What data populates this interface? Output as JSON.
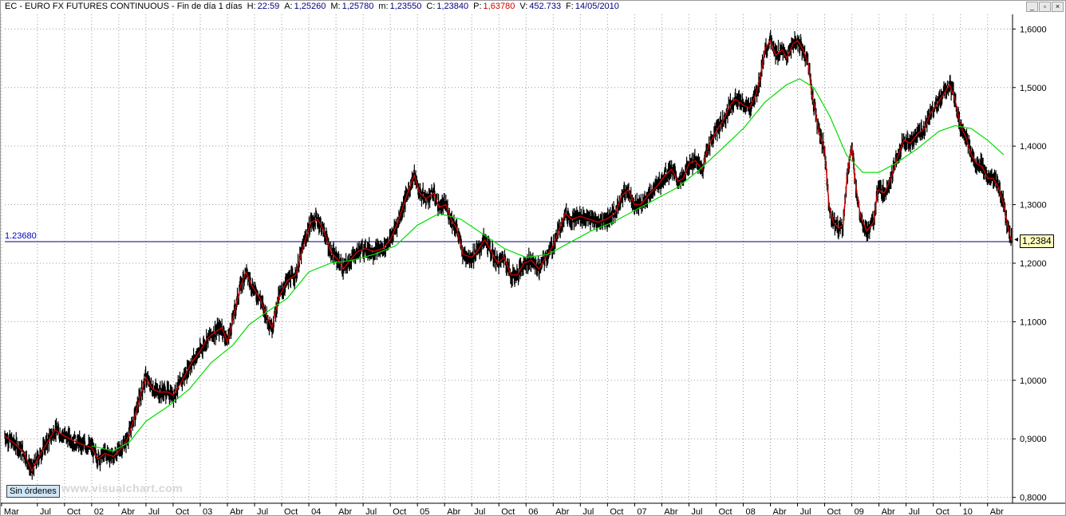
{
  "header": {
    "title": "EC - EURO FX FUTURES CONTINUOUS - Fin de día 1 días",
    "stats": [
      {
        "label": "H:",
        "value": "22:59",
        "color": "#000080"
      },
      {
        "label": "A:",
        "value": "1,25260",
        "color": "#000080"
      },
      {
        "label": "M:",
        "value": "1,25780",
        "color": "#000080"
      },
      {
        "label": "m:",
        "value": "1,23550",
        "color": "#000080"
      },
      {
        "label": "C:",
        "value": "1,23840",
        "color": "#000080"
      },
      {
        "label": "P:",
        "value": "1,63780",
        "color": "#d00000"
      },
      {
        "label": "V:",
        "value": "452.733",
        "color": "#000080"
      },
      {
        "label": "F:",
        "value": "14/05/2010",
        "color": "#000080"
      }
    ]
  },
  "window_controls": {
    "minimize": "_",
    "restore": "▫",
    "close": "×"
  },
  "footer": {
    "orders_button": "Sin órdenes",
    "watermark": "www.visualchart.com"
  },
  "overlay": {
    "hline_label": "1.23680",
    "hline_value": 1.2368,
    "last_price_label": "1,2384",
    "last_price_value": 1.2384
  },
  "colors": {
    "price": "#000000",
    "short_ma": "#cc0000",
    "long_ma": "#00dd00",
    "hline": "#000080",
    "grid": "#9a9a9a"
  },
  "chart_data": {
    "type": "line",
    "title": "EC - EURO FX FUTURES CONTINUOUS",
    "ylim": [
      0.79,
      1.625
    ],
    "xlim": [
      2001.2,
      2010.48
    ],
    "grid": true,
    "y_ticks": [
      {
        "value": 0.8,
        "label": "0,8000"
      },
      {
        "value": 0.9,
        "label": "0,9000"
      },
      {
        "value": 1.0,
        "label": "1,0000"
      },
      {
        "value": 1.1,
        "label": "1,1000"
      },
      {
        "value": 1.2,
        "label": "1,2000"
      },
      {
        "value": 1.3,
        "label": "1,3000"
      },
      {
        "value": 1.4,
        "label": "1,4000"
      },
      {
        "value": 1.5,
        "label": "1,5000"
      },
      {
        "value": 1.6,
        "label": "1,6000"
      }
    ],
    "x_ticks": [
      {
        "x": 2001.17,
        "label": "Mar"
      },
      {
        "x": 2001.5,
        "label": "Jul"
      },
      {
        "x": 2001.75,
        "label": "Oct"
      },
      {
        "x": 2002.0,
        "label": "02"
      },
      {
        "x": 2002.25,
        "label": "Abr"
      },
      {
        "x": 2002.5,
        "label": "Jul"
      },
      {
        "x": 2002.75,
        "label": "Oct"
      },
      {
        "x": 2003.0,
        "label": "03"
      },
      {
        "x": 2003.25,
        "label": "Abr"
      },
      {
        "x": 2003.5,
        "label": "Jul"
      },
      {
        "x": 2003.75,
        "label": "Oct"
      },
      {
        "x": 2004.0,
        "label": "04"
      },
      {
        "x": 2004.25,
        "label": "Abr"
      },
      {
        "x": 2004.5,
        "label": "Jul"
      },
      {
        "x": 2004.75,
        "label": "Oct"
      },
      {
        "x": 2005.0,
        "label": "05"
      },
      {
        "x": 2005.25,
        "label": "Abr"
      },
      {
        "x": 2005.5,
        "label": "Jul"
      },
      {
        "x": 2005.75,
        "label": "Oct"
      },
      {
        "x": 2006.0,
        "label": "06"
      },
      {
        "x": 2006.25,
        "label": "Abr"
      },
      {
        "x": 2006.5,
        "label": "Jul"
      },
      {
        "x": 2006.75,
        "label": "Oct"
      },
      {
        "x": 2007.0,
        "label": "07"
      },
      {
        "x": 2007.25,
        "label": "Abr"
      },
      {
        "x": 2007.5,
        "label": "Jul"
      },
      {
        "x": 2007.75,
        "label": "Oct"
      },
      {
        "x": 2008.0,
        "label": "08"
      },
      {
        "x": 2008.25,
        "label": "Abr"
      },
      {
        "x": 2008.5,
        "label": "Jul"
      },
      {
        "x": 2008.75,
        "label": "Oct"
      },
      {
        "x": 2009.0,
        "label": "09"
      },
      {
        "x": 2009.25,
        "label": "Abr"
      },
      {
        "x": 2009.5,
        "label": "Jul"
      },
      {
        "x": 2009.75,
        "label": "Oct"
      },
      {
        "x": 2010.0,
        "label": "10"
      },
      {
        "x": 2010.25,
        "label": "Abr"
      }
    ],
    "series": [
      {
        "key": "price",
        "points": [
          [
            2001.2,
            0.905
          ],
          [
            2001.3,
            0.89
          ],
          [
            2001.38,
            0.875
          ],
          [
            2001.45,
            0.845
          ],
          [
            2001.5,
            0.865
          ],
          [
            2001.58,
            0.89
          ],
          [
            2001.66,
            0.915
          ],
          [
            2001.75,
            0.905
          ],
          [
            2001.85,
            0.895
          ],
          [
            2001.92,
            0.89
          ],
          [
            2002.0,
            0.885
          ],
          [
            2002.06,
            0.865
          ],
          [
            2002.12,
            0.875
          ],
          [
            2002.2,
            0.87
          ],
          [
            2002.28,
            0.885
          ],
          [
            2002.33,
            0.9
          ],
          [
            2002.4,
            0.94
          ],
          [
            2002.45,
            0.975
          ],
          [
            2002.5,
            1.005
          ],
          [
            2002.56,
            0.985
          ],
          [
            2002.62,
            0.98
          ],
          [
            2002.7,
            0.98
          ],
          [
            2002.75,
            0.975
          ],
          [
            2002.82,
            0.995
          ],
          [
            2002.92,
            1.03
          ],
          [
            2003.0,
            1.05
          ],
          [
            2003.06,
            1.07
          ],
          [
            2003.12,
            1.08
          ],
          [
            2003.2,
            1.09
          ],
          [
            2003.25,
            1.065
          ],
          [
            2003.32,
            1.12
          ],
          [
            2003.37,
            1.16
          ],
          [
            2003.42,
            1.185
          ],
          [
            2003.48,
            1.16
          ],
          [
            2003.55,
            1.14
          ],
          [
            2003.6,
            1.115
          ],
          [
            2003.66,
            1.09
          ],
          [
            2003.72,
            1.14
          ],
          [
            2003.8,
            1.17
          ],
          [
            2003.88,
            1.18
          ],
          [
            2003.95,
            1.23
          ],
          [
            2004.02,
            1.27
          ],
          [
            2004.08,
            1.275
          ],
          [
            2004.14,
            1.255
          ],
          [
            2004.2,
            1.22
          ],
          [
            2004.27,
            1.205
          ],
          [
            2004.32,
            1.19
          ],
          [
            2004.38,
            1.205
          ],
          [
            2004.45,
            1.22
          ],
          [
            2004.52,
            1.225
          ],
          [
            2004.6,
            1.22
          ],
          [
            2004.68,
            1.225
          ],
          [
            2004.75,
            1.24
          ],
          [
            2004.82,
            1.27
          ],
          [
            2004.9,
            1.315
          ],
          [
            2004.97,
            1.35
          ],
          [
            2005.02,
            1.32
          ],
          [
            2005.08,
            1.31
          ],
          [
            2005.15,
            1.32
          ],
          [
            2005.2,
            1.295
          ],
          [
            2005.26,
            1.3
          ],
          [
            2005.31,
            1.275
          ],
          [
            2005.36,
            1.26
          ],
          [
            2005.42,
            1.215
          ],
          [
            2005.5,
            1.21
          ],
          [
            2005.55,
            1.22
          ],
          [
            2005.62,
            1.24
          ],
          [
            2005.68,
            1.22
          ],
          [
            2005.74,
            1.2
          ],
          [
            2005.8,
            1.21
          ],
          [
            2005.86,
            1.18
          ],
          [
            2005.92,
            1.18
          ],
          [
            2005.98,
            1.2
          ],
          [
            2006.05,
            1.205
          ],
          [
            2006.12,
            1.19
          ],
          [
            2006.18,
            1.21
          ],
          [
            2006.25,
            1.23
          ],
          [
            2006.31,
            1.26
          ],
          [
            2006.36,
            1.285
          ],
          [
            2006.42,
            1.275
          ],
          [
            2006.5,
            1.28
          ],
          [
            2006.58,
            1.275
          ],
          [
            2006.66,
            1.27
          ],
          [
            2006.74,
            1.275
          ],
          [
            2006.82,
            1.285
          ],
          [
            2006.88,
            1.315
          ],
          [
            2006.94,
            1.325
          ],
          [
            2007.0,
            1.3
          ],
          [
            2007.06,
            1.3
          ],
          [
            2007.12,
            1.315
          ],
          [
            2007.2,
            1.33
          ],
          [
            2007.28,
            1.35
          ],
          [
            2007.34,
            1.36
          ],
          [
            2007.4,
            1.34
          ],
          [
            2007.45,
            1.345
          ],
          [
            2007.5,
            1.37
          ],
          [
            2007.56,
            1.375
          ],
          [
            2007.62,
            1.36
          ],
          [
            2007.68,
            1.4
          ],
          [
            2007.75,
            1.425
          ],
          [
            2007.82,
            1.445
          ],
          [
            2007.88,
            1.47
          ],
          [
            2007.93,
            1.48
          ],
          [
            2008.0,
            1.47
          ],
          [
            2008.06,
            1.465
          ],
          [
            2008.12,
            1.49
          ],
          [
            2008.16,
            1.52
          ],
          [
            2008.2,
            1.565
          ],
          [
            2008.25,
            1.58
          ],
          [
            2008.3,
            1.555
          ],
          [
            2008.36,
            1.565
          ],
          [
            2008.4,
            1.55
          ],
          [
            2008.46,
            1.575
          ],
          [
            2008.5,
            1.58
          ],
          [
            2008.55,
            1.565
          ],
          [
            2008.6,
            1.54
          ],
          [
            2008.63,
            1.49
          ],
          [
            2008.66,
            1.465
          ],
          [
            2008.7,
            1.42
          ],
          [
            2008.75,
            1.395
          ],
          [
            2008.79,
            1.3
          ],
          [
            2008.83,
            1.27
          ],
          [
            2008.88,
            1.26
          ],
          [
            2008.92,
            1.265
          ],
          [
            2008.96,
            1.355
          ],
          [
            2009.0,
            1.4
          ],
          [
            2009.03,
            1.34
          ],
          [
            2009.08,
            1.28
          ],
          [
            2009.14,
            1.255
          ],
          [
            2009.2,
            1.27
          ],
          [
            2009.24,
            1.325
          ],
          [
            2009.3,
            1.32
          ],
          [
            2009.36,
            1.345
          ],
          [
            2009.42,
            1.38
          ],
          [
            2009.48,
            1.41
          ],
          [
            2009.54,
            1.405
          ],
          [
            2009.6,
            1.42
          ],
          [
            2009.67,
            1.43
          ],
          [
            2009.72,
            1.455
          ],
          [
            2009.78,
            1.47
          ],
          [
            2009.85,
            1.49
          ],
          [
            2009.9,
            1.505
          ],
          [
            2009.95,
            1.48
          ],
          [
            2010.0,
            1.435
          ],
          [
            2010.05,
            1.415
          ],
          [
            2010.1,
            1.385
          ],
          [
            2010.15,
            1.37
          ],
          [
            2010.2,
            1.365
          ],
          [
            2010.25,
            1.345
          ],
          [
            2010.3,
            1.345
          ],
          [
            2010.35,
            1.33
          ],
          [
            2010.4,
            1.3
          ],
          [
            2010.44,
            1.26
          ],
          [
            2010.47,
            1.2384
          ]
        ]
      },
      {
        "key": "long_ma",
        "points": [
          [
            2002.0,
            0.888
          ],
          [
            2002.2,
            0.879
          ],
          [
            2002.35,
            0.895
          ],
          [
            2002.5,
            0.93
          ],
          [
            2002.7,
            0.955
          ],
          [
            2002.9,
            0.985
          ],
          [
            2003.1,
            1.03
          ],
          [
            2003.3,
            1.06
          ],
          [
            2003.45,
            1.095
          ],
          [
            2003.6,
            1.115
          ],
          [
            2003.8,
            1.14
          ],
          [
            2004.0,
            1.185
          ],
          [
            2004.2,
            1.2
          ],
          [
            2004.4,
            1.205
          ],
          [
            2004.6,
            1.215
          ],
          [
            2004.8,
            1.23
          ],
          [
            2005.0,
            1.265
          ],
          [
            2005.2,
            1.285
          ],
          [
            2005.4,
            1.275
          ],
          [
            2005.6,
            1.25
          ],
          [
            2005.8,
            1.225
          ],
          [
            2006.0,
            1.21
          ],
          [
            2006.2,
            1.215
          ],
          [
            2006.4,
            1.235
          ],
          [
            2006.6,
            1.255
          ],
          [
            2006.8,
            1.27
          ],
          [
            2007.0,
            1.29
          ],
          [
            2007.2,
            1.31
          ],
          [
            2007.4,
            1.33
          ],
          [
            2007.6,
            1.36
          ],
          [
            2007.8,
            1.395
          ],
          [
            2008.0,
            1.43
          ],
          [
            2008.2,
            1.475
          ],
          [
            2008.4,
            1.505
          ],
          [
            2008.52,
            1.515
          ],
          [
            2008.65,
            1.5
          ],
          [
            2008.8,
            1.45
          ],
          [
            2008.95,
            1.385
          ],
          [
            2009.1,
            1.355
          ],
          [
            2009.25,
            1.355
          ],
          [
            2009.4,
            1.37
          ],
          [
            2009.6,
            1.395
          ],
          [
            2009.8,
            1.425
          ],
          [
            2009.95,
            1.435
          ],
          [
            2010.1,
            1.43
          ],
          [
            2010.25,
            1.41
          ],
          [
            2010.4,
            1.385
          ]
        ]
      }
    ]
  }
}
